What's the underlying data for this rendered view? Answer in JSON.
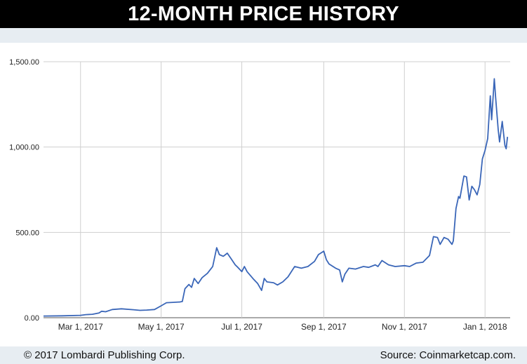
{
  "header": {
    "title": "12-MONTH PRICE HISTORY"
  },
  "footer": {
    "copyright": "© 2017 Lombardi Publishing Corp.",
    "source": "Source: Coinmarketcap.com."
  },
  "colors": {
    "line": "#3a66b8",
    "grid": "#cfcfcf",
    "title_bg": "#000000",
    "band_bg": "#e7edf2"
  },
  "chart_data": {
    "type": "line",
    "title": "12-MONTH PRICE HISTORY",
    "xlabel": "",
    "ylabel": "",
    "xlim": [
      "2017-02-01",
      "2018-01-20"
    ],
    "ylim": [
      0,
      1500
    ],
    "grid": true,
    "legend": "none",
    "yticks": [
      {
        "value": 0,
        "label": "0.00"
      },
      {
        "value": 500,
        "label": "500.00"
      },
      {
        "value": 1000,
        "label": "1,000.00"
      },
      {
        "value": 1500,
        "label": "1,500.00"
      }
    ],
    "xticks": [
      {
        "date": "2017-03-01",
        "label": "Mar 1, 2017"
      },
      {
        "date": "2017-05-01",
        "label": "May 1, 2017"
      },
      {
        "date": "2017-07-01",
        "label": "Jul 1, 2017"
      },
      {
        "date": "2017-09-01",
        "label": "Sep 1, 2017"
      },
      {
        "date": "2017-11-01",
        "label": "Nov 1, 2017"
      },
      {
        "date": "2018-01-01",
        "label": "Jan 1, 2018"
      }
    ],
    "series": [
      {
        "points": [
          [
            "2017-02-01",
            10
          ],
          [
            "2017-02-15",
            11
          ],
          [
            "2017-03-01",
            14
          ],
          [
            "2017-03-05",
            18
          ],
          [
            "2017-03-10",
            20
          ],
          [
            "2017-03-15",
            28
          ],
          [
            "2017-03-17",
            38
          ],
          [
            "2017-03-20",
            35
          ],
          [
            "2017-03-25",
            48
          ],
          [
            "2017-04-01",
            52
          ],
          [
            "2017-04-10",
            47
          ],
          [
            "2017-04-15",
            43
          ],
          [
            "2017-04-20",
            45
          ],
          [
            "2017-04-26",
            48
          ],
          [
            "2017-05-01",
            70
          ],
          [
            "2017-05-05",
            88
          ],
          [
            "2017-05-10",
            90
          ],
          [
            "2017-05-15",
            92
          ],
          [
            "2017-05-17",
            95
          ],
          [
            "2017-05-19",
            170
          ],
          [
            "2017-05-22",
            195
          ],
          [
            "2017-05-24",
            178
          ],
          [
            "2017-05-26",
            230
          ],
          [
            "2017-05-29",
            200
          ],
          [
            "2017-06-01",
            235
          ],
          [
            "2017-06-05",
            260
          ],
          [
            "2017-06-09",
            300
          ],
          [
            "2017-06-12",
            410
          ],
          [
            "2017-06-14",
            370
          ],
          [
            "2017-06-17",
            360
          ],
          [
            "2017-06-20",
            378
          ],
          [
            "2017-06-23",
            345
          ],
          [
            "2017-06-26",
            310
          ],
          [
            "2017-06-28",
            295
          ],
          [
            "2017-07-01",
            270
          ],
          [
            "2017-07-03",
            300
          ],
          [
            "2017-07-05",
            270
          ],
          [
            "2017-07-10",
            225
          ],
          [
            "2017-07-13",
            200
          ],
          [
            "2017-07-16",
            160
          ],
          [
            "2017-07-18",
            230
          ],
          [
            "2017-07-20",
            210
          ],
          [
            "2017-07-25",
            205
          ],
          [
            "2017-07-28",
            192
          ],
          [
            "2017-08-01",
            210
          ],
          [
            "2017-08-05",
            240
          ],
          [
            "2017-08-10",
            300
          ],
          [
            "2017-08-15",
            290
          ],
          [
            "2017-08-20",
            300
          ],
          [
            "2017-08-25",
            330
          ],
          [
            "2017-08-28",
            370
          ],
          [
            "2017-09-01",
            390
          ],
          [
            "2017-09-03",
            340
          ],
          [
            "2017-09-05",
            315
          ],
          [
            "2017-09-10",
            290
          ],
          [
            "2017-09-13",
            280
          ],
          [
            "2017-09-15",
            210
          ],
          [
            "2017-09-17",
            255
          ],
          [
            "2017-09-20",
            290
          ],
          [
            "2017-09-25",
            285
          ],
          [
            "2017-10-01",
            300
          ],
          [
            "2017-10-05",
            295
          ],
          [
            "2017-10-10",
            310
          ],
          [
            "2017-10-12",
            300
          ],
          [
            "2017-10-15",
            335
          ],
          [
            "2017-10-20",
            310
          ],
          [
            "2017-10-25",
            300
          ],
          [
            "2017-11-01",
            305
          ],
          [
            "2017-11-05",
            300
          ],
          [
            "2017-11-10",
            320
          ],
          [
            "2017-11-15",
            325
          ],
          [
            "2017-11-20",
            365
          ],
          [
            "2017-11-23",
            475
          ],
          [
            "2017-11-26",
            470
          ],
          [
            "2017-11-28",
            430
          ],
          [
            "2017-12-01",
            470
          ],
          [
            "2017-12-04",
            460
          ],
          [
            "2017-12-07",
            430
          ],
          [
            "2017-12-08",
            450
          ],
          [
            "2017-12-10",
            640
          ],
          [
            "2017-12-12",
            710
          ],
          [
            "2017-12-13",
            700
          ],
          [
            "2017-12-16",
            830
          ],
          [
            "2017-12-18",
            825
          ],
          [
            "2017-12-20",
            690
          ],
          [
            "2017-12-22",
            770
          ],
          [
            "2017-12-24",
            750
          ],
          [
            "2017-12-26",
            720
          ],
          [
            "2017-12-28",
            780
          ],
          [
            "2017-12-30",
            930
          ],
          [
            "2018-01-01",
            980
          ],
          [
            "2018-01-03",
            1050
          ],
          [
            "2018-01-05",
            1300
          ],
          [
            "2018-01-06",
            1160
          ],
          [
            "2018-01-08",
            1400
          ],
          [
            "2018-01-09",
            1290
          ],
          [
            "2018-01-11",
            1100
          ],
          [
            "2018-01-12",
            1030
          ],
          [
            "2018-01-14",
            1150
          ],
          [
            "2018-01-16",
            1010
          ],
          [
            "2018-01-17",
            990
          ],
          [
            "2018-01-18",
            1060
          ]
        ]
      }
    ]
  }
}
